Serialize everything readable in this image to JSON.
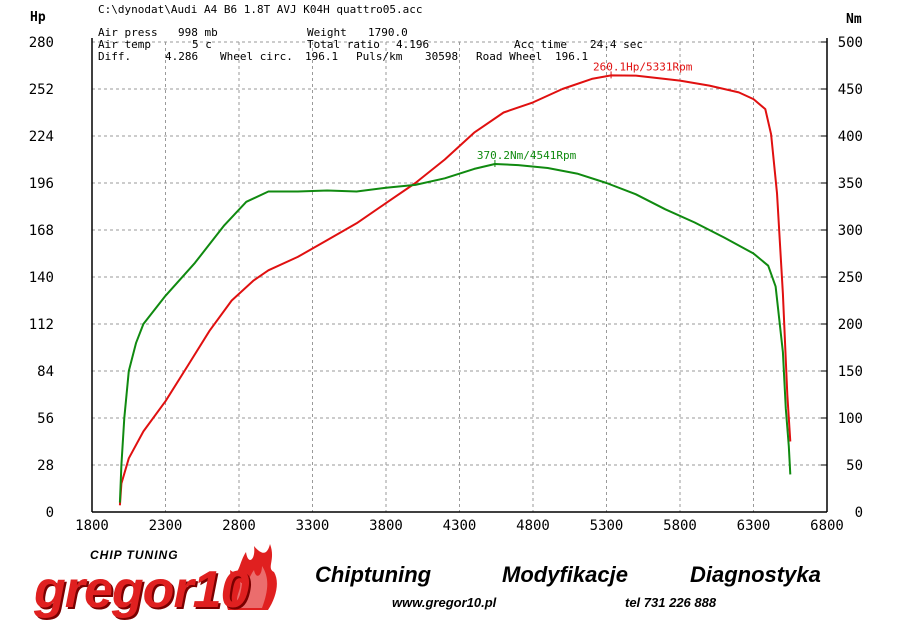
{
  "header": {
    "file_path": "C:\\dynodat\\Audi A4 B6 1.8T AVJ K04H quattro05.acc",
    "air_press_label": "Air press",
    "air_press_value": "998 mb",
    "air_temp_label": "Air temp",
    "air_temp_value": "5 c",
    "diff_label": "Diff.",
    "diff_value": "4.286",
    "weight_label": "Weight",
    "weight_value": "1790.0",
    "total_ratio_label": "Total ratio",
    "total_ratio_value": "4.196",
    "wheel_circ_label": "Wheel circ.",
    "wheel_circ_value": "196.1",
    "puls_label": "Puls/km",
    "puls_value": "30598",
    "acc_time_label": "Acc time",
    "acc_time_value": "24.4 sec",
    "road_wheel_label": "Road Wheel",
    "road_wheel_value": "196.1"
  },
  "footer": {
    "logo_sub": "CHIP TUNING",
    "logo_main": "gregor10",
    "slogan_1": "Chiptuning",
    "slogan_2": "Modyfikacje",
    "slogan_3": "Diagnostyka",
    "website": "www.gregor10.pl",
    "phone": "tel 731 226 888"
  },
  "colors": {
    "power": "#e01010",
    "torque": "#108a10",
    "grid": "#9a9a9a"
  },
  "chart_data": {
    "type": "line",
    "y_left_unit": "Hp",
    "y_right_unit": "Nm",
    "xlim": [
      1800,
      6800
    ],
    "ylim_left": [
      0,
      280
    ],
    "ylim_right": [
      0,
      500
    ],
    "x_ticks": [
      1800,
      2300,
      2800,
      3300,
      3800,
      4300,
      4800,
      5300,
      5800,
      6300,
      6800
    ],
    "y_left_ticks": [
      0,
      28,
      56,
      84,
      112,
      140,
      168,
      196,
      224,
      252,
      280
    ],
    "y_right_ticks": [
      0,
      50,
      100,
      150,
      200,
      250,
      300,
      350,
      400,
      450,
      500
    ],
    "grid": true,
    "series": [
      {
        "axis": "left",
        "color": "#e01010",
        "peak_label": "260.1Hp/5331Rpm",
        "peak": [
          5331,
          260.1
        ],
        "points": [
          [
            1990,
            4
          ],
          [
            2000,
            17
          ],
          [
            2050,
            32
          ],
          [
            2150,
            48
          ],
          [
            2300,
            66
          ],
          [
            2450,
            87
          ],
          [
            2600,
            108
          ],
          [
            2750,
            126
          ],
          [
            2900,
            138
          ],
          [
            3000,
            144
          ],
          [
            3200,
            152
          ],
          [
            3400,
            162
          ],
          [
            3600,
            172
          ],
          [
            3800,
            184
          ],
          [
            4000,
            196
          ],
          [
            4200,
            210
          ],
          [
            4400,
            226
          ],
          [
            4600,
            238
          ],
          [
            4800,
            244
          ],
          [
            5000,
            252
          ],
          [
            5200,
            258
          ],
          [
            5331,
            260.1
          ],
          [
            5500,
            260
          ],
          [
            5800,
            257
          ],
          [
            6000,
            254
          ],
          [
            6200,
            250
          ],
          [
            6300,
            246
          ],
          [
            6380,
            240
          ],
          [
            6420,
            225
          ],
          [
            6460,
            190
          ],
          [
            6500,
            130
          ],
          [
            6530,
            70
          ],
          [
            6550,
            42
          ]
        ]
      },
      {
        "axis": "right",
        "color": "#108a10",
        "peak_label": "370.2Nm/4541Rpm",
        "peak": [
          4541,
          370.2
        ],
        "points": [
          [
            1990,
            10
          ],
          [
            2000,
            50
          ],
          [
            2020,
            100
          ],
          [
            2050,
            150
          ],
          [
            2100,
            180
          ],
          [
            2150,
            200
          ],
          [
            2300,
            230
          ],
          [
            2500,
            265
          ],
          [
            2700,
            305
          ],
          [
            2850,
            330
          ],
          [
            3000,
            341
          ],
          [
            3200,
            341
          ],
          [
            3400,
            342
          ],
          [
            3600,
            341
          ],
          [
            3800,
            345
          ],
          [
            4000,
            348
          ],
          [
            4200,
            355
          ],
          [
            4400,
            365
          ],
          [
            4541,
            370.2
          ],
          [
            4700,
            369
          ],
          [
            4900,
            366
          ],
          [
            5100,
            360
          ],
          [
            5300,
            350
          ],
          [
            5500,
            338
          ],
          [
            5700,
            322
          ],
          [
            5900,
            308
          ],
          [
            6100,
            292
          ],
          [
            6300,
            275
          ],
          [
            6400,
            262
          ],
          [
            6450,
            240
          ],
          [
            6500,
            170
          ],
          [
            6520,
            110
          ],
          [
            6540,
            70
          ],
          [
            6550,
            40
          ]
        ]
      }
    ]
  }
}
